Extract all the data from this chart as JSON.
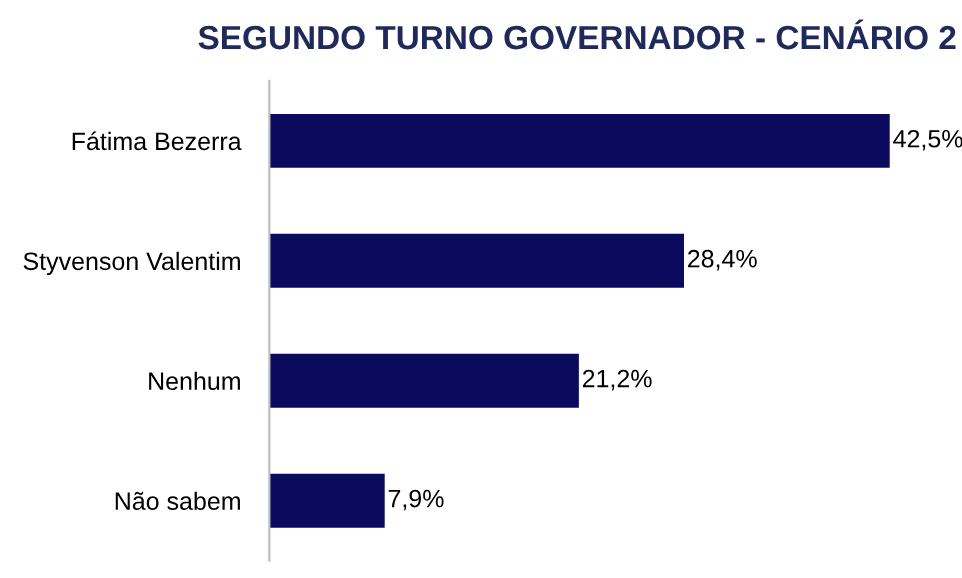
{
  "chart_data": {
    "type": "bar",
    "orientation": "horizontal",
    "title": "SEGUNDO TURNO GOVERNADOR - CENÁRIO 2",
    "categories": [
      "Fátima Bezerra",
      "Styvenson Valentim",
      "Nenhum",
      "Não sabem"
    ],
    "values": [
      42.5,
      28.4,
      21.2,
      7.9
    ],
    "value_labels": [
      "42,5%",
      "28,4%",
      "21,2%",
      "7,9%"
    ],
    "color": "#0b0b5e",
    "xlim": [
      0,
      42.5
    ],
    "tick_labels": "y",
    "grid": false,
    "legend": false
  }
}
